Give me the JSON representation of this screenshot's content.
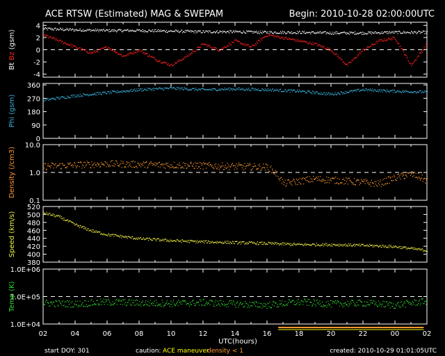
{
  "header": {
    "title": "ACE RTSW (Estimated) MAG & SWEPAM",
    "begin": "Begin: 2010-10-28 02:00:00UTC"
  },
  "footer": {
    "start_doy": "start DOY: 301",
    "caution": "caution:",
    "maneuver": "ACE maneuver",
    "density_note": "density < 1",
    "created": "created: 2010-10-29 01:01:05UTC",
    "xlabel": "UTC(hours)"
  },
  "colors": {
    "bt": "#ffffff",
    "bz": "#ff2020",
    "phi": "#3ab4e0",
    "density": "#ff9a30",
    "speed": "#f0f040",
    "temp": "#30d830",
    "axis": "#ffffff",
    "caution": "#ffff00",
    "density_flag": "#ff9a30"
  },
  "chart_data": [
    {
      "type": "scatter",
      "panel": "mag",
      "ylabel_parts": [
        "Bt",
        "Bz",
        "(gsm)"
      ],
      "ylim": [
        -4.5,
        4.5
      ],
      "yticks": [
        "4",
        "2",
        "0",
        "-2",
        "-4"
      ],
      "reference_line": 0,
      "series": [
        {
          "name": "Bt",
          "anchors_x": [
            0,
            2,
            4,
            6,
            8,
            10,
            12,
            14,
            16,
            18,
            20,
            22,
            24
          ],
          "anchors_y": [
            3.5,
            3.3,
            3.2,
            3.2,
            3.1,
            3.0,
            3.0,
            2.9,
            2.9,
            2.8,
            2.8,
            2.9,
            2.9
          ]
        },
        {
          "name": "Bz",
          "anchors_x": [
            0,
            1,
            2,
            3,
            4,
            5,
            6,
            7,
            8,
            9,
            10,
            11,
            12,
            13,
            14,
            15,
            16,
            17,
            18,
            19,
            20,
            21,
            22,
            23,
            24
          ],
          "anchors_y": [
            2.5,
            1.5,
            0.5,
            -0.5,
            0.5,
            -1,
            0,
            -1.5,
            -2.5,
            -1,
            1,
            0,
            1.5,
            0.5,
            2.5,
            2,
            1.5,
            1,
            0,
            -2.5,
            0,
            1.5,
            2,
            -2.5,
            1
          ]
        }
      ]
    },
    {
      "type": "scatter",
      "panel": "phi",
      "ylabel_parts": [
        "Phi",
        "(gsm)"
      ],
      "ylim": [
        0,
        370
      ],
      "yticks": [
        "360",
        "270",
        "180",
        "90",
        "0"
      ],
      "series": [
        {
          "name": "Phi",
          "anchors_x": [
            0,
            2,
            4,
            6,
            8,
            10,
            12,
            14,
            16,
            18,
            20,
            22,
            24
          ],
          "anchors_y": [
            260,
            290,
            310,
            330,
            340,
            330,
            335,
            330,
            320,
            300,
            330,
            320,
            315
          ]
        }
      ]
    },
    {
      "type": "scatter",
      "panel": "density",
      "ylabel_parts": [
        "Density",
        "(/cm3)"
      ],
      "yscale": "log",
      "ylim": [
        0.1,
        10
      ],
      "yticks": [
        "10.0",
        "1.0",
        "0.1"
      ],
      "reference_line": 1,
      "series": [
        {
          "name": "Density",
          "anchors_x": [
            0,
            2,
            4,
            6,
            8,
            10,
            12,
            14,
            15,
            17,
            19,
            21,
            23,
            24
          ],
          "anchors_y": [
            1.7,
            1.9,
            2.1,
            2.0,
            1.9,
            1.8,
            1.7,
            1.6,
            0.4,
            0.6,
            0.5,
            0.4,
            0.9,
            0.5
          ]
        }
      ]
    },
    {
      "type": "scatter",
      "panel": "speed",
      "ylabel_parts": [
        "Speed",
        "(km/s)"
      ],
      "ylim": [
        380,
        520
      ],
      "yticks": [
        "520",
        "500",
        "480",
        "460",
        "440",
        "420",
        "400",
        "380"
      ],
      "series": [
        {
          "name": "Speed",
          "anchors_x": [
            0,
            1,
            2,
            3,
            4,
            6,
            8,
            10,
            12,
            14,
            16,
            18,
            20,
            22,
            24
          ],
          "anchors_y": [
            505,
            495,
            475,
            460,
            450,
            440,
            435,
            432,
            430,
            428,
            425,
            425,
            423,
            420,
            410
          ]
        }
      ]
    },
    {
      "type": "scatter",
      "panel": "temp",
      "ylabel_parts": [
        "Temp",
        "(K)"
      ],
      "yscale": "log",
      "ylim": [
        10000,
        1000000
      ],
      "yticks": [
        "1.0E+06",
        "1.0E+05",
        "1.0E+04"
      ],
      "reference_line": 100000,
      "series": [
        {
          "name": "Temp",
          "anchors_x": [
            0,
            2,
            4,
            6,
            8,
            10,
            12,
            14,
            16,
            18,
            20,
            22,
            24
          ],
          "anchors_y": [
            60000,
            55000,
            65000,
            60000,
            58000,
            62000,
            55000,
            50000,
            65000,
            55000,
            60000,
            50000,
            70000
          ]
        }
      ]
    }
  ],
  "xaxis": {
    "ticks": [
      "02",
      "04",
      "06",
      "08",
      "10",
      "12",
      "14",
      "16",
      "18",
      "20",
      "22",
      "00",
      "02"
    ],
    "xlim": [
      0,
      24
    ]
  }
}
